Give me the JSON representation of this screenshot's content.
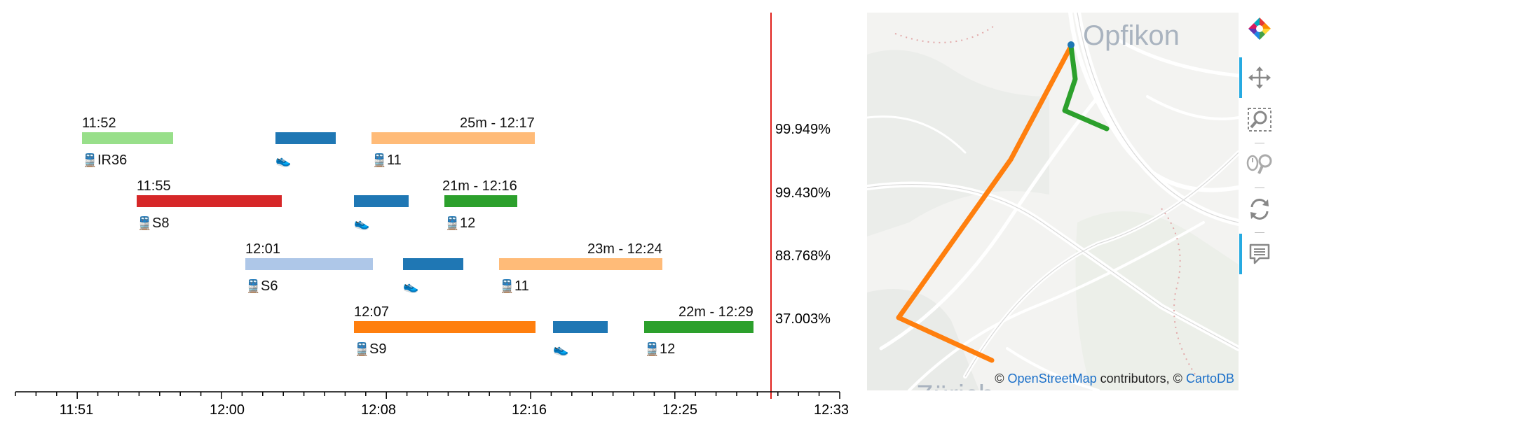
{
  "axis": {
    "tick_labels": [
      "11:51",
      "12:00",
      "12:08",
      "12:16",
      "12:25",
      "12:33"
    ]
  },
  "journeys": [
    {
      "depart_label": "11:52",
      "arrive_label": "25m - 12:17",
      "probability": "99.949%",
      "legs": [
        {
          "mode": "train",
          "label": "IR36",
          "color": "#98df8a"
        },
        {
          "mode": "walk",
          "label": "",
          "color": "#1f77b4"
        },
        {
          "mode": "train",
          "label": "11",
          "color": "#ffbb78"
        }
      ]
    },
    {
      "depart_label": "11:55",
      "arrive_label": "21m - 12:16",
      "probability": "99.430%",
      "legs": [
        {
          "mode": "train",
          "label": "S8",
          "color": "#d62728"
        },
        {
          "mode": "walk",
          "label": "",
          "color": "#1f77b4"
        },
        {
          "mode": "train",
          "label": "12",
          "color": "#2ca02c"
        }
      ]
    },
    {
      "depart_label": "12:01",
      "arrive_label": "23m - 12:24",
      "probability": "88.768%",
      "legs": [
        {
          "mode": "train",
          "label": "S6",
          "color": "#aec7e8"
        },
        {
          "mode": "walk",
          "label": "",
          "color": "#1f77b4"
        },
        {
          "mode": "train",
          "label": "11",
          "color": "#ffbb78"
        }
      ]
    },
    {
      "depart_label": "12:07",
      "arrive_label": "22m - 12:29",
      "probability": "37.003%",
      "legs": [
        {
          "mode": "train",
          "label": "S9",
          "color": "#ff7f0e"
        },
        {
          "mode": "walk",
          "label": "",
          "color": "#1f77b4"
        },
        {
          "mode": "train",
          "label": "12",
          "color": "#2ca02c"
        }
      ]
    }
  ],
  "deadline_line_color": "#e0201b",
  "map": {
    "place_label_top": "Opfikon",
    "place_label_bottom": "Zürich",
    "attribution_prefix": "©",
    "attribution_link1": "OpenStreetMap",
    "attribution_mid": "contributors, ©",
    "attribution_link2": "CartoDB",
    "route_colors": [
      "#ff7f0e",
      "#2ca02c",
      "#1f77b4"
    ]
  },
  "toolbar": {
    "tools": [
      "bokeh-logo-icon",
      "pan-icon",
      "box-zoom-icon",
      "wheel-zoom-icon",
      "reset-icon",
      "hover-icon"
    ]
  }
}
